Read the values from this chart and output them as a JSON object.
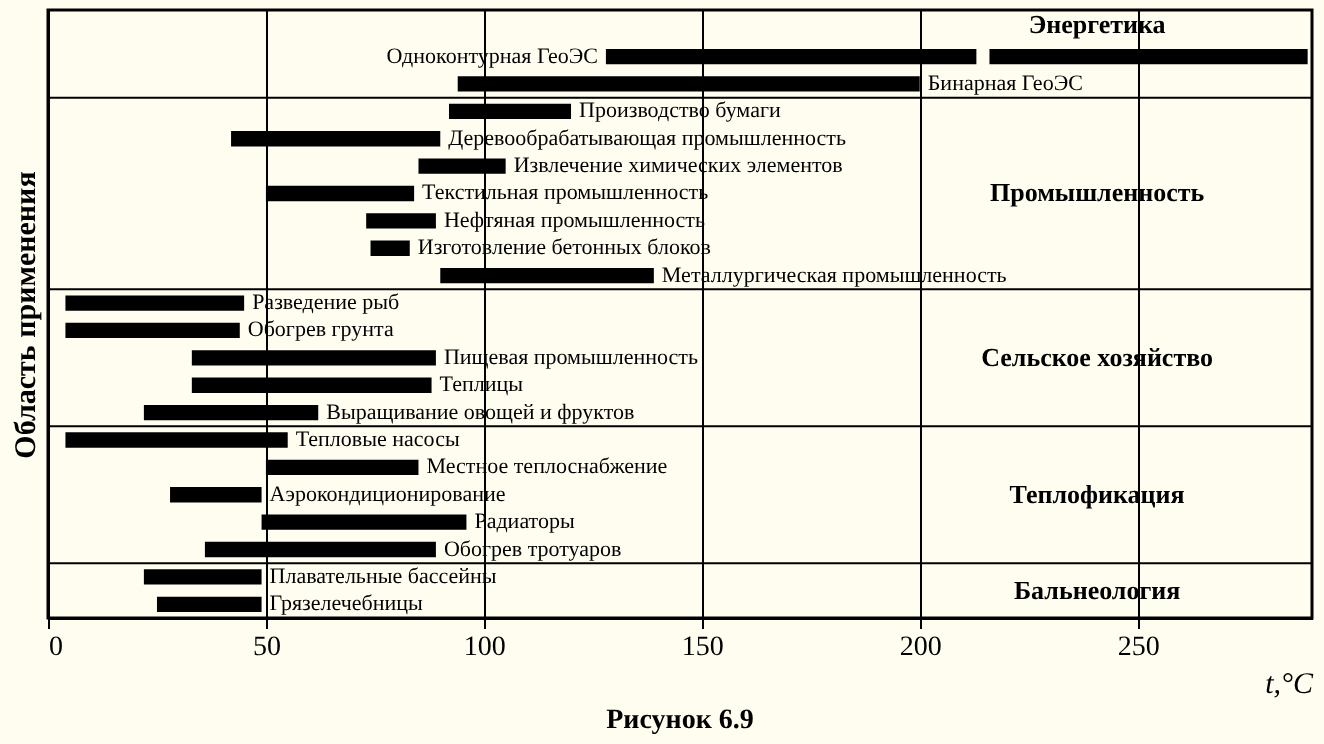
{
  "chart_data": {
    "type": "bar",
    "orientation": "horizontal",
    "title": "Рисунок 6.9",
    "xlabel": "t,°C",
    "ylabel": "Область применения",
    "categories": [
      "Одноконтурная ГеоЭС",
      "Бинарная ГеоЭС",
      "Производство бумаги",
      "Деревообрабатывающая промышленность",
      "Извлечение химических элементов",
      "Текстильная промышленность",
      "Нефтяная промышленность",
      "Изготовление бетонных блоков",
      "Металлургическая промышленность",
      "Разведение рыб",
      "Обогрев грунта",
      "Пищевая промышленность",
      "Теплицы",
      "Выращивание овощей и фруктов",
      "Тепловые насосы",
      "Местное теплоснабжение",
      "Аэрокондиционирование",
      "Радиаторы",
      "Обогрев тротуаров",
      "Плавательные бассейны",
      "Грязелечебницы"
    ],
    "series": [
      {
        "color": "#000000",
        "base": [
          128,
          94,
          92,
          42,
          85,
          50,
          73,
          74,
          90,
          4,
          4,
          33,
          33,
          22,
          4,
          50,
          28,
          49,
          36,
          22,
          25
        ],
        "values": [
          85,
          106,
          28,
          48,
          20,
          34,
          16,
          9,
          49,
          41,
          40,
          56,
          55,
          40,
          51,
          35,
          21,
          47,
          53,
          27,
          24
        ]
      },
      {
        "color": "#000000",
        "base": [
          216,
          null,
          null,
          null,
          null,
          null,
          null,
          null,
          null,
          null,
          null,
          null,
          null,
          null,
          null,
          null,
          null,
          null,
          null,
          null,
          null
        ],
        "values": [
          73,
          null,
          null,
          null,
          null,
          null,
          null,
          null,
          null,
          null,
          null,
          null,
          null,
          null,
          null,
          null,
          null,
          null,
          null,
          null,
          null
        ]
      }
    ],
    "annotations": [
      "Энергетика",
      "Промышленность",
      "Сельское хозяйство",
      "Теплофикация",
      "Бальнеология"
    ],
    "xlim": [
      0,
      290
    ],
    "xticks": [
      0,
      50,
      100,
      150,
      200,
      250
    ],
    "grid": "x",
    "tick_labels": "x"
  }
}
